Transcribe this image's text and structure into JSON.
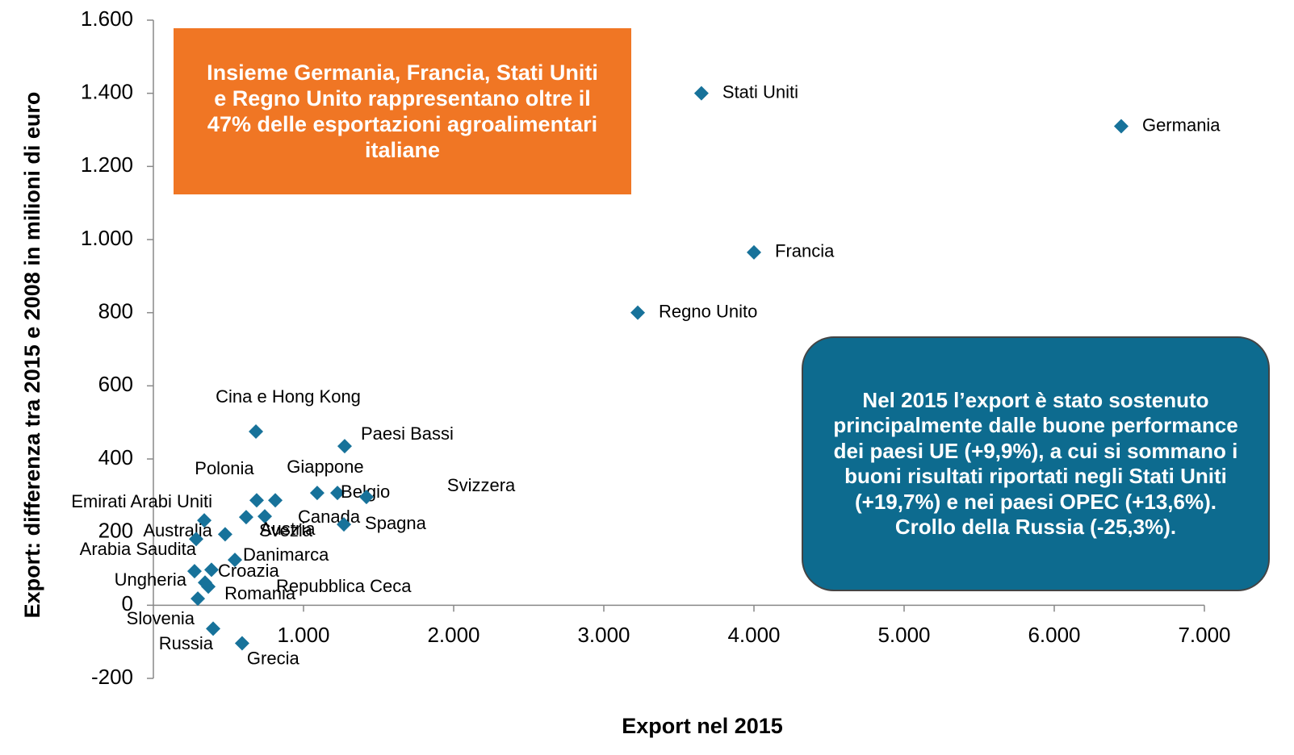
{
  "chart_data": {
    "type": "scatter",
    "x_label": "Export nel 2015",
    "y_label": "Export: differenza tra 2015 e 2008 in milioni di euro",
    "annotations": [
      "Insieme Germania, Francia, Stati Uniti e Regno Unito rappresentano oltre il 47% delle esportazioni agroalimentari italiane",
      "Nel 2015 l’export è stato sostenuto principalmente dalle buone performance dei paesi UE (+9,9%), a cui si sommano i buoni risultati riportati negli Stati Uniti (+19,7%) e nei paesi OPEC (+13,6%). Crollo della Russia (-25,3%)."
    ],
    "color": "#17729a",
    "labels": [
      "Stati Uniti",
      "Germania",
      "Francia",
      "Regno Unito",
      "Cina e Hong Kong",
      "Paesi Bassi",
      "Giappone",
      "Belgio",
      "Svizzera",
      "Austria",
      "Polonia",
      "Canada",
      "Svezia",
      "Spagna",
      "Emirati Arabi Uniti",
      "Australia",
      "Arabia Saudita",
      "Danimarca",
      "Croazia",
      "Ungheria",
      "Repubblica Ceca",
      "Romania",
      "Slovenia",
      "Russia",
      "Grecia"
    ],
    "x": [
      3650,
      6446,
      4000,
      3226,
      683,
      1274,
      1091,
      1226,
      1419,
      742,
      688,
      812,
      618,
      1269,
      339,
      478,
      285,
      543,
      387,
      274,
      344,
      366,
      296,
      398,
      591
    ],
    "y": [
      1400,
      1310,
      965,
      800,
      475,
      435,
      307,
      307,
      296,
      243,
      287,
      287,
      241,
      221,
      232,
      194,
      181,
      124,
      97,
      93,
      62,
      51,
      18,
      -64,
      -104
    ],
    "xlim": [
      0,
      7000
    ],
    "xticks": [
      {
        "value": 1000,
        "label": "1.000"
      },
      {
        "value": 2000,
        "label": "2.000"
      },
      {
        "value": 3000,
        "label": "3.000"
      },
      {
        "value": 4000,
        "label": "4.000"
      },
      {
        "value": 5000,
        "label": "5.000"
      },
      {
        "value": 6000,
        "label": "6.000"
      },
      {
        "value": 7000,
        "label": "7.000"
      }
    ],
    "ylim": [
      -200,
      1600
    ],
    "yticks": [
      -200,
      0,
      200,
      400,
      600,
      800,
      {
        "value": 1000,
        "label": "1.000"
      },
      {
        "value": 1200,
        "label": "1.200"
      },
      {
        "value": 1400,
        "label": "1.400"
      },
      {
        "value": 1600,
        "label": "1.600"
      }
    ]
  }
}
